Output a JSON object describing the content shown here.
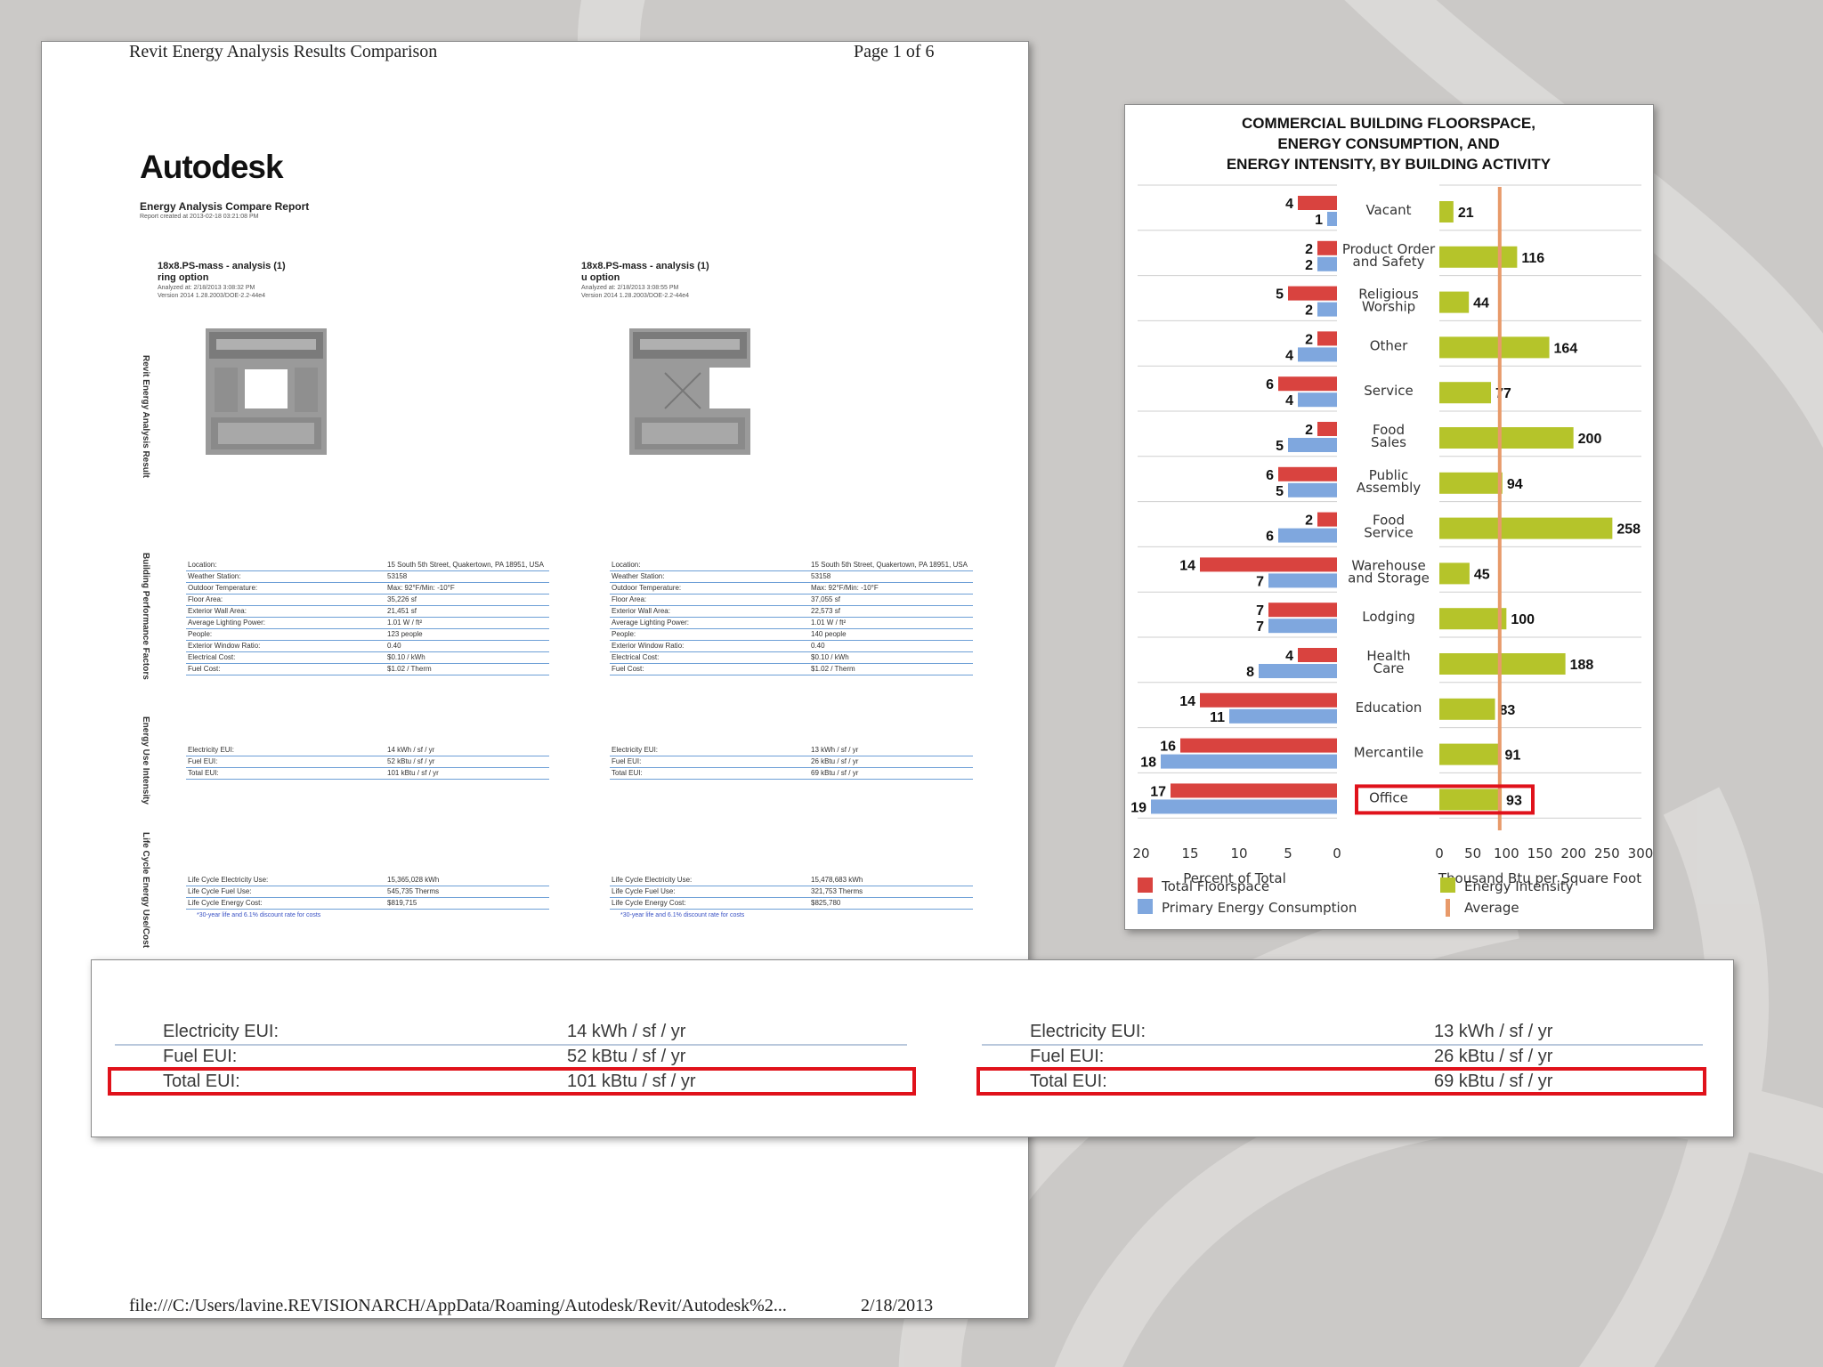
{
  "document": {
    "header_left": "Revit Energy Analysis Results Comparison",
    "header_right": "Page 1 of 6",
    "logo": "Autodesk",
    "report_title": "Energy Analysis Compare Report",
    "report_created": "Report created at 2013-02-18 03:21:08 PM",
    "options": [
      {
        "name": "18x8.PS-mass - analysis (1)",
        "option": "ring option",
        "analyzed": "Analyzed at: 2/18/2013 3:08:32 PM",
        "version": "Version 2014 1.28.2003/DOE-2.2-44e4"
      },
      {
        "name": "18x8.PS-mass - analysis (1)",
        "option": "u option",
        "analyzed": "Analyzed at: 2/18/2013 3:08:55 PM",
        "version": "Version 2014 1.28.2003/DOE-2.2-44e4"
      }
    ],
    "side_labels": [
      "Revit Energy Analysis Result",
      "Building Performance Factors",
      "Energy Use Intensity",
      "Life Cycle Energy Use/Cost"
    ],
    "building_factors": {
      "labels": [
        "Location:",
        "Weather Station:",
        "Outdoor Temperature:",
        "Floor Area:",
        "Exterior Wall Area:",
        "Average Lighting Power:",
        "People:",
        "Exterior Window Ratio:",
        "Electrical Cost:",
        "Fuel Cost:"
      ],
      "left_values": [
        "15 South 5th Street, Quakertown, PA 18951, USA",
        "53158",
        "Max: 92°F/Min: -10°F",
        "35,226 sf",
        "21,451 sf",
        "1.01 W / ft²",
        "123 people",
        "0.40",
        "$0.10 / kWh",
        "$1.02 / Therm"
      ],
      "right_values": [
        "15 South 5th Street, Quakertown, PA 18951, USA",
        "53158",
        "Max: 92°F/Min: -10°F",
        "37,055 sf",
        "22,573 sf",
        "1.01 W / ft²",
        "140 people",
        "0.40",
        "$0.10 / kWh",
        "$1.02 / Therm"
      ]
    },
    "eui": {
      "labels": [
        "Electricity EUI:",
        "Fuel EUI:",
        "Total EUI:"
      ],
      "left_values": [
        "14 kWh / sf / yr",
        "52 kBtu / sf / yr",
        "101 kBtu / sf / yr"
      ],
      "right_values": [
        "13 kWh / sf / yr",
        "26 kBtu / sf / yr",
        "69 kBtu / sf / yr"
      ]
    },
    "life_cycle": {
      "labels": [
        "Life Cycle Electricity Use:",
        "Life Cycle Fuel Use:",
        "Life Cycle Energy Cost:"
      ],
      "left_values": [
        "15,365,028 kWh",
        "545,735 Therms",
        "$819,715"
      ],
      "right_values": [
        "15,478,683 kWh",
        "321,753 Therms",
        "$825,780"
      ],
      "note": "*30-year life and 6.1% discount rate for costs"
    },
    "footer_path": "file:///C:/Users/lavine.REVISIONARCH/AppData/Roaming/Autodesk/Revit/Autodesk%2...",
    "footer_date": "2/18/2013"
  },
  "zoom_panel": {
    "left": [
      {
        "label": "Electricity EUI:",
        "value": "14 kWh / sf / yr"
      },
      {
        "label": "Fuel EUI:",
        "value": "52 kBtu / sf / yr"
      },
      {
        "label": "Total EUI:",
        "value": "101 kBtu / sf / yr"
      }
    ],
    "right": [
      {
        "label": "Electricity EUI:",
        "value": "13 kWh / sf / yr"
      },
      {
        "label": "Fuel EUI:",
        "value": "26 kBtu / sf / yr"
      },
      {
        "label": "Total EUI:",
        "value": "69 kBtu / sf / yr"
      }
    ]
  },
  "chart_data": {
    "type": "bar",
    "title": [
      "COMMERCIAL BUILDING FLOORSPACE,",
      "ENERGY CONSUMPTION, AND",
      "ENERGY INTENSITY, BY BUILDING ACTIVITY"
    ],
    "categories": [
      [
        "Vacant"
      ],
      [
        "Product Order",
        "and Safety"
      ],
      [
        "Religious",
        "Worship"
      ],
      [
        "Other"
      ],
      [
        "Service"
      ],
      [
        "Food",
        "Sales"
      ],
      [
        "Public",
        "Assembly"
      ],
      [
        "Food",
        "Service"
      ],
      [
        "Warehouse",
        "and Storage"
      ],
      [
        "Lodging"
      ],
      [
        "Health",
        "Care"
      ],
      [
        "Education"
      ],
      [
        "Mercantile"
      ],
      [
        "Office"
      ]
    ],
    "series": [
      {
        "name": "Total Floorspace",
        "values": [
          4,
          2,
          5,
          2,
          6,
          2,
          6,
          2,
          14,
          7,
          4,
          14,
          16,
          17
        ]
      },
      {
        "name": "Primary Energy Consumption",
        "values": [
          1,
          2,
          2,
          4,
          4,
          5,
          5,
          6,
          7,
          7,
          8,
          11,
          18,
          19
        ]
      },
      {
        "name": "Energy Intensity",
        "values": [
          21,
          116,
          44,
          164,
          77,
          200,
          94,
          258,
          45,
          100,
          188,
          83,
          91,
          93
        ]
      }
    ],
    "average_intensity": 90,
    "left_axis": {
      "label": "Percent of Total",
      "range": [
        20,
        0
      ],
      "ticks": [
        "20",
        "15",
        "10",
        "5",
        "0"
      ]
    },
    "right_axis": {
      "label": "Thousand Btu per Square Foot",
      "range": [
        0,
        300
      ],
      "ticks": [
        "0",
        "50",
        "100",
        "150",
        "200",
        "250",
        "300"
      ]
    },
    "legend": [
      "Total Floorspace",
      "Energy Intensity",
      "Primary Energy Consumption",
      "Average"
    ],
    "highlighted_category": "Office",
    "colors": {
      "floorspace": "#d9433f",
      "consumption": "#7fa7de",
      "intensity": "#b5c42a",
      "average": "#e89a6a",
      "highlight": "#e0121b"
    }
  }
}
